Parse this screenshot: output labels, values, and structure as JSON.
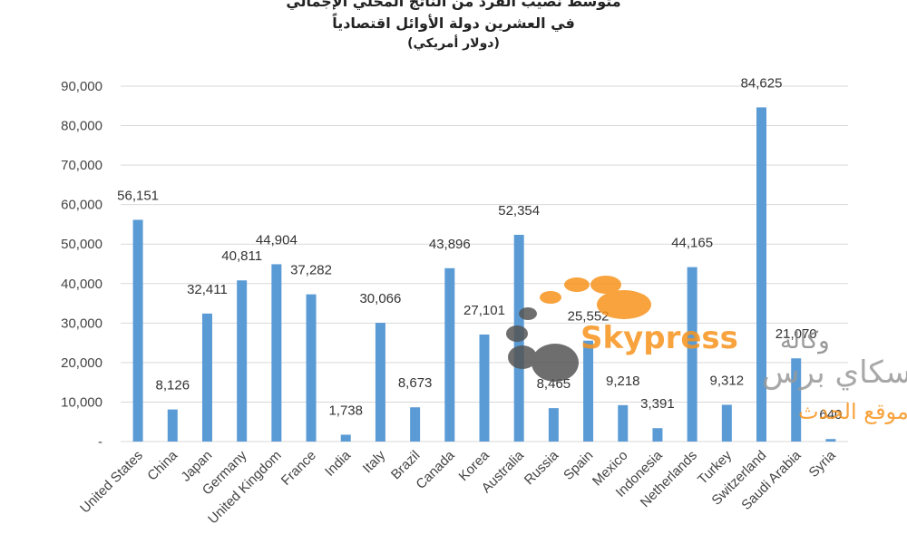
{
  "title_lines": [
    "متوسط نصيب الفرد من الناتج المحلي الإجمالي",
    "في العشرين دولة الأوائل اقتصادياً",
    "(دولار أمريكي)"
  ],
  "chart_data": {
    "type": "bar",
    "categories": [
      "United States",
      "China",
      "Japan",
      "Germany",
      "United Kingdom",
      "France",
      "India",
      "Italy",
      "Brazil",
      "Canada",
      "Korea",
      "Australia",
      "Russia",
      "Spain",
      "Mexico",
      "Indonesia",
      "Netherlands",
      "Turkey",
      "Switzerland",
      "Saudi Arabia",
      "Syria"
    ],
    "values": [
      56151,
      8126,
      32411,
      40811,
      44904,
      37282,
      1738,
      30066,
      8673,
      43896,
      27101,
      52354,
      8465,
      25552,
      9218,
      3391,
      44165,
      9312,
      84625,
      21070,
      640
    ],
    "data_labels": [
      "56,151",
      "8,126",
      "32,411",
      "40,811",
      "44,904",
      "37,282",
      "1,738",
      "30,066",
      "8,673",
      "43,896",
      "27,101",
      "52,354",
      "8,465",
      "25,552",
      "9,218",
      "3,391",
      "44,165",
      "9,312",
      "84,625",
      "21,070",
      "640"
    ],
    "yticks": [
      "-",
      "10,000",
      "20,000",
      "30,000",
      "40,000",
      "50,000",
      "60,000",
      "70,000",
      "80,000",
      "90,000"
    ],
    "ylim": [
      0,
      90000
    ],
    "grid": true,
    "bar_color": "#5b9bd5"
  },
  "watermark": {
    "brand": "Skypress",
    "arabic_top": "وكالة",
    "arabic_name": "سكاي برس",
    "arabic_tagline": "من موقع الحدث",
    "brand_color": "#f7941d",
    "dot_color": "#555555"
  }
}
